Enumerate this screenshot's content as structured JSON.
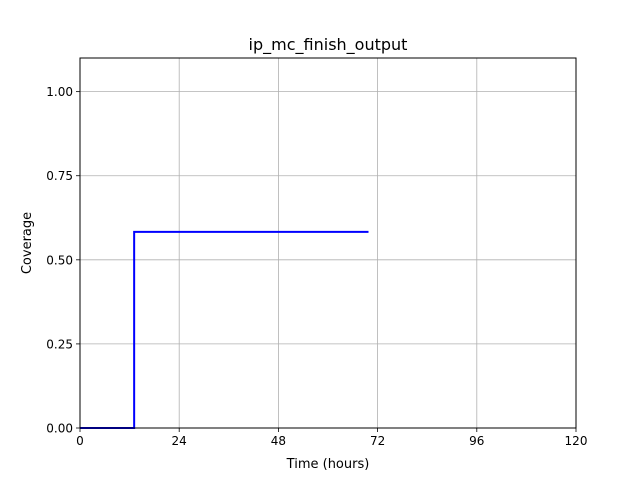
{
  "chart_data": {
    "type": "line",
    "title": "ip_mc_finish_output",
    "xlabel": "Time (hours)",
    "ylabel": "Coverage",
    "xlim": [
      0,
      120
    ],
    "ylim": [
      0,
      1.1
    ],
    "x_ticks": [
      0,
      24,
      48,
      72,
      96,
      120
    ],
    "x_tick_labels": [
      "0",
      "24",
      "48",
      "72",
      "96",
      "120"
    ],
    "y_ticks": [
      0,
      0.25,
      0.5,
      0.75,
      1.0
    ],
    "y_tick_labels": [
      "0.00",
      "0.25",
      "0.50",
      "0.75",
      "1.00"
    ],
    "grid": true,
    "series": [
      {
        "color": "#0000ff",
        "step": true,
        "x": [
          0,
          13.1,
          13.1,
          69.8
        ],
        "y": [
          0,
          0,
          0.583,
          0.583
        ]
      }
    ]
  }
}
